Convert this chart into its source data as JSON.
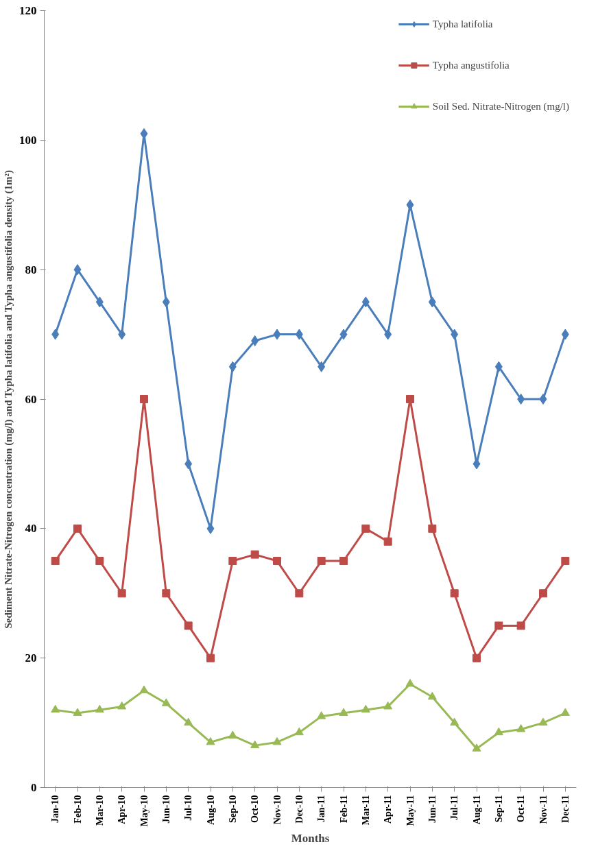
{
  "chart_data": {
    "type": "line",
    "xlabel": "Months",
    "ylabel": "Sediment Nitrate-Nitrogen concentration (mg/l) and Typha latifolia and Typha angustifolia density (1m²)",
    "categories": [
      "Jan-10",
      "Feb-10",
      "Mar-10",
      "Apr-10",
      "May-10",
      "Jun-10",
      "Jul-10",
      "Aug-10",
      "Sep-10",
      "Oct-10",
      "Nov-10",
      "Dec-10",
      "Jan-11",
      "Feb-11",
      "Mar-11",
      "Apr-11",
      "May-11",
      "Jun-11",
      "Jul-11",
      "Aug-11",
      "Sep-11",
      "Oct-11",
      "Nov-11",
      "Dec-11"
    ],
    "series": [
      {
        "name": "Typha latifolia",
        "color": "#4a7ebb",
        "marker": "diamond",
        "values": [
          70,
          80,
          75,
          70,
          101,
          75,
          50,
          40,
          65,
          69,
          70,
          70,
          65,
          70,
          75,
          70,
          90,
          75,
          70,
          50,
          65,
          60,
          60,
          70
        ]
      },
      {
        "name": "Typha angustifolia",
        "color": "#be4b48",
        "marker": "square",
        "values": [
          35,
          40,
          35,
          30,
          60,
          30,
          25,
          20,
          35,
          36,
          35,
          30,
          35,
          35,
          40,
          38,
          60,
          40,
          30,
          20,
          25,
          25,
          30,
          35
        ]
      },
      {
        "name": "Soil Sed. Nitrate-Nitrogen (mg/l)",
        "color": "#98b954",
        "marker": "triangle",
        "values": [
          12,
          11.5,
          12,
          12.5,
          15,
          13,
          10,
          7,
          8,
          6.5,
          7,
          8.5,
          11,
          11.5,
          12,
          12.5,
          16,
          14,
          10,
          6,
          8.5,
          9,
          10,
          11.5
        ]
      }
    ],
    "ylim": [
      0,
      120
    ],
    "yticks": [
      0,
      20,
      40,
      60,
      80,
      100,
      120
    ],
    "grid": false,
    "legend": "top right",
    "line_style": "solid"
  }
}
